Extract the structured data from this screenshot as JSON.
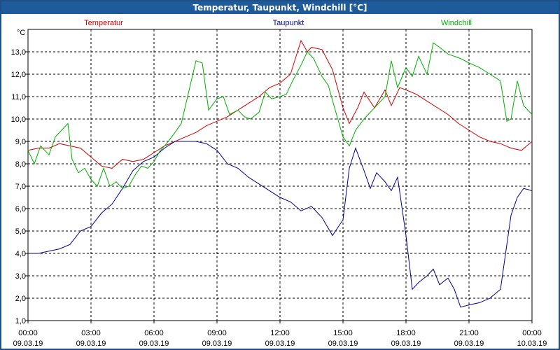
{
  "chart_data": {
    "type": "line",
    "title": "Temperatur, Taupunkt, Windchill [°C]",
    "ylabel": "°C",
    "ylim": [
      1.0,
      14.0
    ],
    "yticks": [
      "1,0",
      "2,0",
      "3,0",
      "4,0",
      "5,0",
      "6,0",
      "7,0",
      "8,0",
      "9,0",
      "10,0",
      "11,0",
      "12,0",
      "13,0"
    ],
    "xlim": [
      0,
      24
    ],
    "xticks": [
      {
        "time": "00:00",
        "date": "09.03.19"
      },
      {
        "time": "03:00",
        "date": "09.03.19"
      },
      {
        "time": "06:00",
        "date": "09.03.19"
      },
      {
        "time": "09:00",
        "date": "09.03.19"
      },
      {
        "time": "12:00",
        "date": "09.03.19"
      },
      {
        "time": "15:00",
        "date": "09.03.19"
      },
      {
        "time": "18:00",
        "date": "09.03.19"
      },
      {
        "time": "21:00",
        "date": "09.03.19"
      },
      {
        "time": "00:00",
        "date": "10.03.19"
      }
    ],
    "grid": true,
    "legend": "top",
    "series": [
      {
        "name": "Temperatur",
        "color": "#d40000",
        "x": [
          0,
          0.5,
          1,
          1.5,
          2,
          2.5,
          3,
          3.5,
          4,
          4.5,
          5,
          5.5,
          6,
          6.5,
          7,
          7.5,
          8,
          8.5,
          9,
          9.5,
          10,
          10.5,
          11,
          11.5,
          12,
          12.5,
          13,
          13.3,
          13.5,
          14,
          14.5,
          15,
          15.3,
          15.7,
          16,
          16.5,
          17,
          17.3,
          17.7,
          18,
          18.5,
          19,
          19.5,
          20,
          20.5,
          21,
          21.5,
          22,
          22.5,
          23,
          23.5,
          24
        ],
        "values": [
          8.6,
          8.7,
          8.7,
          8.9,
          8.8,
          8.7,
          8.3,
          7.9,
          7.8,
          8.2,
          8.1,
          8.2,
          8.5,
          8.8,
          9.0,
          9.2,
          9.4,
          9.7,
          9.9,
          10.1,
          10.4,
          10.7,
          11.0,
          11.4,
          11.6,
          12.0,
          13.5,
          13.0,
          13.2,
          13.1,
          12.2,
          10.5,
          9.8,
          10.5,
          11.2,
          10.5,
          11.3,
          10.6,
          11.4,
          11.3,
          11.1,
          10.8,
          10.5,
          10.2,
          9.8,
          9.5,
          9.2,
          9.0,
          8.9,
          8.7,
          8.6,
          9.0
        ]
      },
      {
        "name": "Taupunkt",
        "color": "#00008b",
        "x": [
          0,
          0.5,
          1,
          1.5,
          2,
          2.5,
          3,
          3.5,
          4,
          4.5,
          5,
          5.5,
          6,
          6.5,
          7,
          7.5,
          8,
          8.5,
          9,
          9.5,
          10,
          10.5,
          11,
          11.5,
          12,
          12.5,
          13,
          13.5,
          14,
          14.5,
          15,
          15.3,
          15.6,
          16,
          16.3,
          16.6,
          17,
          17.3,
          17.6,
          18,
          18.3,
          18.6,
          19,
          19.3,
          19.6,
          20,
          20.3,
          20.6,
          21,
          21.5,
          22,
          22.5,
          23,
          23.3,
          23.6,
          24
        ],
        "values": [
          4.0,
          4.0,
          4.1,
          4.2,
          4.4,
          5.0,
          5.2,
          5.8,
          6.2,
          6.9,
          7.7,
          8.1,
          8.3,
          8.7,
          9.0,
          9.0,
          9.0,
          8.9,
          8.6,
          8.0,
          7.8,
          7.4,
          7.1,
          6.8,
          6.5,
          6.3,
          5.9,
          6.1,
          5.6,
          4.8,
          5.5,
          7.8,
          8.7,
          7.7,
          6.9,
          7.6,
          7.2,
          6.8,
          7.4,
          4.8,
          2.4,
          2.7,
          3.0,
          3.3,
          2.6,
          2.9,
          2.4,
          1.6,
          1.7,
          1.8,
          2.0,
          2.4,
          5.7,
          6.5,
          6.9,
          6.8
        ]
      },
      {
        "name": "Windchill",
        "color": "#00b000",
        "x": [
          0,
          0.3,
          0.6,
          1,
          1.3,
          1.6,
          1.9,
          2.1,
          2.4,
          2.7,
          3,
          3.3,
          3.6,
          3.9,
          4.2,
          4.5,
          4.8,
          5.1,
          5.4,
          5.7,
          6,
          6.3,
          6.6,
          7,
          7.3,
          7.6,
          8,
          8.3,
          8.6,
          9,
          9.3,
          9.6,
          10,
          10.3,
          10.6,
          11,
          11.3,
          11.6,
          12,
          12.3,
          12.6,
          13,
          13.3,
          13.6,
          14,
          14.3,
          14.6,
          15,
          15.3,
          15.6,
          16,
          16.3,
          16.6,
          17,
          17.3,
          17.6,
          18,
          18.3,
          18.6,
          19,
          19.3,
          19.6,
          20,
          20.3,
          20.6,
          21,
          21.5,
          22,
          22.5,
          22.8,
          23,
          23.3,
          23.6,
          24
        ],
        "values": [
          8.6,
          8.0,
          8.8,
          8.4,
          9.2,
          9.5,
          9.8,
          8.2,
          7.6,
          7.8,
          7.3,
          7.0,
          7.8,
          7.0,
          7.2,
          6.9,
          7.0,
          7.5,
          7.9,
          7.8,
          8.1,
          8.6,
          8.9,
          9.4,
          9.8,
          11.0,
          12.6,
          12.5,
          10.4,
          10.9,
          11.0,
          10.2,
          10.4,
          10.1,
          10.0,
          10.3,
          11.2,
          10.9,
          11.0,
          11.1,
          11.7,
          12.4,
          13.0,
          12.7,
          11.9,
          11.5,
          10.5,
          9.2,
          8.8,
          9.5,
          10.0,
          10.3,
          10.6,
          11.0,
          12.6,
          11.4,
          12.3,
          11.9,
          12.8,
          12.0,
          13.4,
          13.2,
          12.9,
          12.8,
          12.7,
          12.5,
          12.3,
          12.0,
          11.7,
          9.9,
          10.0,
          11.7,
          10.6,
          10.2
        ]
      }
    ]
  }
}
